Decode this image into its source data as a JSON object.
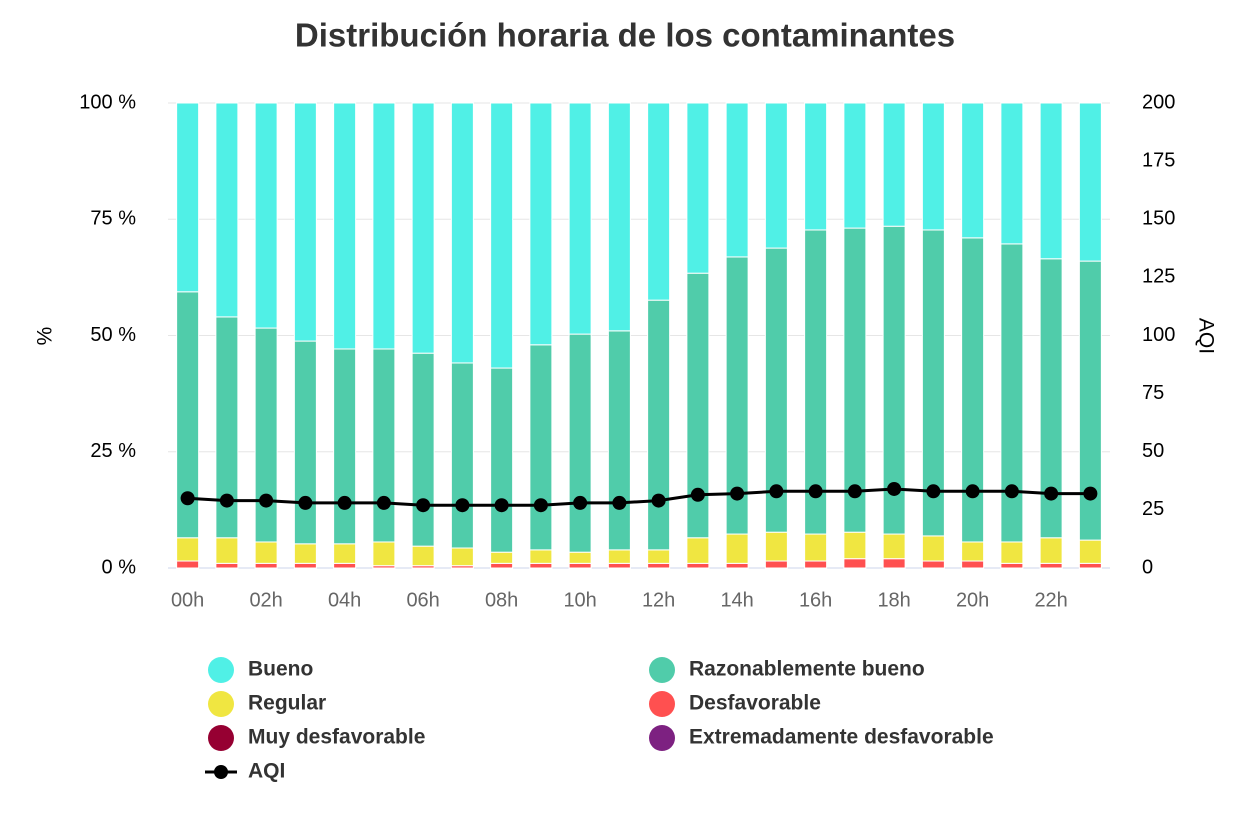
{
  "chart_data": {
    "type": "bar",
    "stacked": true,
    "title": "Distribución horaria de los contaminantes",
    "ylabel": "%",
    "y2label": "AQI",
    "categories": [
      "00h",
      null,
      "02h",
      null,
      "04h",
      null,
      "06h",
      null,
      "08h",
      null,
      "10h",
      null,
      "12h",
      null,
      "14h",
      null,
      "16h",
      null,
      "18h",
      null,
      "20h",
      null,
      "22h",
      null
    ],
    "ylim": [
      0,
      100
    ],
    "yticks": [
      {
        "value": 0,
        "label": "0 %"
      },
      {
        "value": 25,
        "label": "25 %"
      },
      {
        "value": 50,
        "label": "50 %"
      },
      {
        "value": 75,
        "label": "75 %"
      },
      {
        "value": 100,
        "label": "100 %"
      }
    ],
    "y2lim": [
      0,
      200
    ],
    "y2ticks": [
      0,
      25,
      50,
      75,
      100,
      125,
      150,
      175,
      200
    ],
    "grid": true,
    "legend": "bottom",
    "series": [
      {
        "name": "Bueno",
        "color": "#50f0e6",
        "values": [
          40.6,
          46,
          48.4,
          51.2,
          52.9,
          52.9,
          53.8,
          55.9,
          57,
          52,
          49.7,
          49,
          42.4,
          36.6,
          33.1,
          31.2,
          27.3,
          26.9,
          26.5,
          27.3,
          29,
          30.3,
          33.5,
          34
        ]
      },
      {
        "name": "Razonablemente bueno",
        "color": "#50ccaa",
        "values": [
          52.9,
          47.5,
          46,
          43.6,
          41.9,
          41.5,
          41.5,
          39.8,
          39.6,
          44.1,
          46.9,
          47.1,
          53.7,
          56.9,
          59.6,
          61.1,
          65.4,
          65.4,
          66.2,
          65.8,
          65.4,
          64.1,
          60,
          60
        ]
      },
      {
        "name": "Regular",
        "color": "#f0e641",
        "values": [
          5,
          5.5,
          4.6,
          4.2,
          4.2,
          5.1,
          4.2,
          3.8,
          2.4,
          2.9,
          2.4,
          2.9,
          2.9,
          5.5,
          6.3,
          6.2,
          5.8,
          5.7,
          5.3,
          5.4,
          4.1,
          4.6,
          5.5,
          5
        ]
      },
      {
        "name": "Desfavorable",
        "color": "#ff5050",
        "values": [
          1.5,
          1,
          1,
          1,
          1,
          0.5,
          0.5,
          0.5,
          1,
          1,
          1,
          1,
          1,
          1,
          1,
          1.5,
          1.5,
          2,
          2,
          1.5,
          1.5,
          1,
          1,
          1
        ]
      },
      {
        "name": "Muy desfavorable",
        "color": "#960032",
        "values": [
          0,
          0,
          0,
          0,
          0,
          0,
          0,
          0,
          0,
          0,
          0,
          0,
          0,
          0,
          0,
          0,
          0,
          0,
          0,
          0,
          0,
          0,
          0,
          0
        ]
      },
      {
        "name": "Extremadamente desfavorable",
        "color": "#7d2181",
        "values": [
          0,
          0,
          0,
          0,
          0,
          0,
          0,
          0,
          0,
          0,
          0,
          0,
          0,
          0,
          0,
          0,
          0,
          0,
          0,
          0,
          0,
          0,
          0,
          0
        ]
      },
      {
        "name": "AQI",
        "type": "line",
        "axis": "y2",
        "color": "#000000",
        "values": [
          30,
          29,
          29,
          28,
          28,
          28,
          27,
          27,
          27,
          27,
          28,
          28,
          29,
          31.5,
          32,
          33,
          33,
          33,
          34,
          33,
          33,
          33,
          32,
          32
        ]
      }
    ]
  }
}
